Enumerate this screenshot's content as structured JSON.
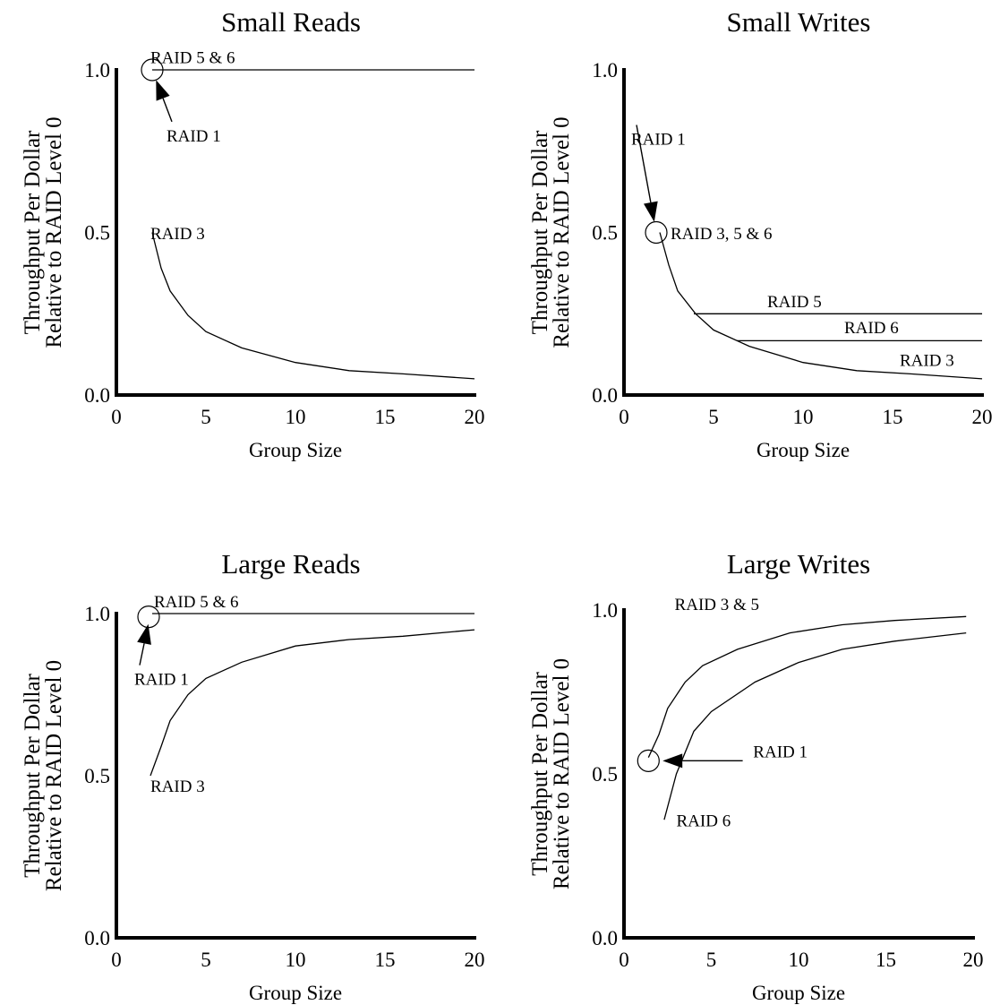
{
  "chart_data": [
    {
      "type": "line",
      "title": "Small Reads",
      "xlabel": "Group Size",
      "ylabel": [
        "Throughput Per Dollar",
        "Relative to RAID Level 0"
      ],
      "xlim": [
        0,
        20
      ],
      "ylim": [
        0,
        1
      ],
      "xticks": [
        "0",
        "5",
        "10",
        "15",
        "20"
      ],
      "yticks": [
        "0.0",
        "0.5",
        "1.0"
      ],
      "series": [
        {
          "x": [
            2,
            20
          ],
          "y": [
            1.0,
            1.0
          ],
          "label": "RAID 5 & 6"
        },
        {
          "x": [
            2,
            2.5,
            3,
            4,
            5,
            7,
            10,
            13,
            16,
            20
          ],
          "y": [
            0.5,
            0.39,
            0.32,
            0.245,
            0.195,
            0.145,
            0.1,
            0.075,
            0.065,
            0.05
          ],
          "label": "RAID 3"
        }
      ],
      "annotations": [
        {
          "text": "RAID 5 & 6",
          "at": [
            1.9,
            1.02
          ]
        },
        {
          "text": "RAID 3",
          "at": [
            1.9,
            0.48
          ]
        },
        {
          "text": "RAID 1",
          "at": [
            2.8,
            0.78
          ],
          "arrow_to": [
            2,
            1.0
          ]
        }
      ],
      "markers": [
        {
          "type": "circle",
          "at": [
            2,
            1.0
          ]
        }
      ]
    },
    {
      "type": "line",
      "title": "Small Writes",
      "xlabel": "Group Size",
      "ylabel": [
        "Throughput Per Dollar",
        "Relative to RAID Level 0"
      ],
      "xlim": [
        0,
        20
      ],
      "ylim": [
        0,
        1
      ],
      "xticks": [
        "0",
        "5",
        "10",
        "15",
        "20"
      ],
      "yticks": [
        "0.0",
        "0.5",
        "1.0"
      ],
      "series": [
        {
          "x": [
            2,
            2.5,
            3,
            4,
            5,
            7,
            10,
            13,
            16,
            20
          ],
          "y": [
            0.5,
            0.4,
            0.32,
            0.25,
            0.2,
            0.15,
            0.1,
            0.075,
            0.065,
            0.05
          ],
          "label": "RAID 3"
        },
        {
          "x": [
            3.9,
            20
          ],
          "y": [
            0.25,
            0.25
          ],
          "label": "RAID 5"
        },
        {
          "x": [
            6.3,
            20
          ],
          "y": [
            0.167,
            0.167
          ],
          "label": "RAID 6"
        }
      ],
      "annotations": [
        {
          "text": "RAID 1",
          "at": [
            0.4,
            0.77
          ],
          "arrow_to": [
            1.8,
            0.5
          ]
        },
        {
          "text": "RAID 3, 5 & 6",
          "at": [
            2.6,
            0.48
          ]
        },
        {
          "text": "RAID 5",
          "at": [
            8,
            0.27
          ]
        },
        {
          "text": "RAID 6",
          "at": [
            12.3,
            0.19
          ]
        },
        {
          "text": "RAID 3",
          "at": [
            15.4,
            0.09
          ]
        }
      ],
      "markers": [
        {
          "type": "circle",
          "at": [
            1.8,
            0.5
          ]
        }
      ]
    },
    {
      "type": "line",
      "title": "Large Reads",
      "xlabel": "Group Size",
      "ylabel": [
        "Throughput Per Dollar",
        "Relative to RAID Level 0"
      ],
      "xlim": [
        0,
        20
      ],
      "ylim": [
        0,
        1
      ],
      "xticks": [
        "0",
        "5",
        "10",
        "15",
        "20"
      ],
      "yticks": [
        "0.0",
        "0.5",
        "1.0"
      ],
      "series": [
        {
          "x": [
            2,
            20
          ],
          "y": [
            1.0,
            1.0
          ],
          "label": "RAID 5 & 6"
        },
        {
          "x": [
            1.9,
            2.5,
            3,
            4,
            5,
            7,
            10,
            13,
            16,
            20
          ],
          "y": [
            0.5,
            0.59,
            0.67,
            0.75,
            0.8,
            0.85,
            0.9,
            0.92,
            0.93,
            0.95
          ],
          "label": "RAID 3"
        }
      ],
      "annotations": [
        {
          "text": "RAID 5 & 6",
          "at": [
            2.1,
            1.02
          ]
        },
        {
          "text": "RAID 1",
          "at": [
            1.0,
            0.78
          ],
          "arrow_to": [
            1.9,
            1.0
          ]
        },
        {
          "text": "RAID 3",
          "at": [
            1.9,
            0.45
          ]
        }
      ],
      "markers": [
        {
          "type": "circle",
          "at": [
            1.8,
            0.99
          ]
        }
      ]
    },
    {
      "type": "line",
      "title": "Large Writes",
      "xlabel": "Group Size",
      "ylabel": [
        "Throughput Per Dollar",
        "Relative to RAID Level 0"
      ],
      "xlim": [
        0,
        20
      ],
      "ylim": [
        0,
        1
      ],
      "xticks": [
        "0",
        "5",
        "10",
        "15",
        "20"
      ],
      "yticks": [
        "0.0",
        "0.5",
        "1.0"
      ],
      "series": [
        {
          "x": [
            1.4,
            2,
            2.5,
            3.5,
            4.5,
            6.5,
            9.5,
            12.5,
            15.5,
            19.6
          ],
          "y": [
            0.55,
            0.62,
            0.7,
            0.78,
            0.83,
            0.88,
            0.93,
            0.955,
            0.968,
            0.98
          ],
          "label": "RAID 3 & 5"
        },
        {
          "x": [
            2.3,
            3,
            4,
            5,
            7.5,
            10,
            12.5,
            15.5,
            19.6
          ],
          "y": [
            0.36,
            0.5,
            0.63,
            0.69,
            0.78,
            0.84,
            0.88,
            0.905,
            0.93
          ],
          "label": "RAID 6"
        }
      ],
      "annotations": [
        {
          "text": "RAID 3 & 5",
          "at": [
            2.9,
            1.0
          ]
        },
        {
          "text": "RAID 1",
          "at": [
            7.4,
            0.55
          ],
          "arrow_from": [
            6.8,
            0.54
          ],
          "arrow_to": [
            1.6,
            0.54
          ]
        },
        {
          "text": "RAID 6",
          "at": [
            3.0,
            0.34
          ]
        }
      ],
      "markers": [
        {
          "type": "circle",
          "at": [
            1.4,
            0.54
          ]
        }
      ]
    }
  ]
}
